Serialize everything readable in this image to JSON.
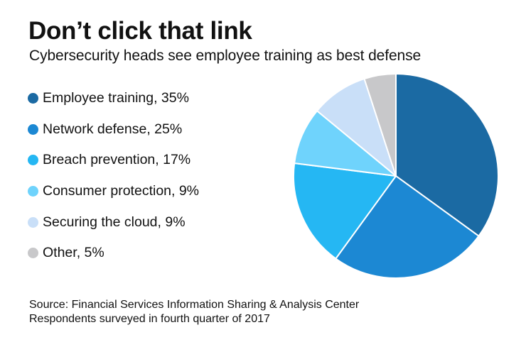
{
  "header": {
    "title": "Don’t click that link",
    "subtitle": "Cybersecurity heads see employee training as best defense"
  },
  "legend": [
    {
      "label": "Employee training, 35%",
      "color": "#1b6aa3"
    },
    {
      "label": "Network defense, 25%",
      "color": "#1c88d3"
    },
    {
      "label": "Breach prevention, 17%",
      "color": "#25b7f3"
    },
    {
      "label": "Consumer protection, 9%",
      "color": "#6fd3fc"
    },
    {
      "label": "Securing the cloud, 9%",
      "color": "#c9dff8"
    },
    {
      "label": "Other, 5%",
      "color": "#c8c8ca"
    }
  ],
  "footer": {
    "source": "Source: Financial Services Information Sharing & Analysis Center",
    "note": "Respondents surveyed in fourth quarter of 2017"
  },
  "chart_data": {
    "type": "pie",
    "title": "Don’t click that link",
    "subtitle": "Cybersecurity heads see employee training as best defense",
    "categories": [
      "Employee training",
      "Network defense",
      "Breach prevention",
      "Consumer protection",
      "Securing the cloud",
      "Other"
    ],
    "values": [
      35,
      25,
      17,
      9,
      9,
      5
    ],
    "unit": "%",
    "colors": [
      "#1b6aa3",
      "#1c88d3",
      "#25b7f3",
      "#6fd3fc",
      "#c9dff8",
      "#c8c8ca"
    ],
    "start_angle": "12 o'clock",
    "direction": "clockwise",
    "legend_position": "left",
    "source": "Source: Financial Services Information Sharing & Analysis Center",
    "note": "Respondents surveyed in fourth quarter of 2017"
  }
}
